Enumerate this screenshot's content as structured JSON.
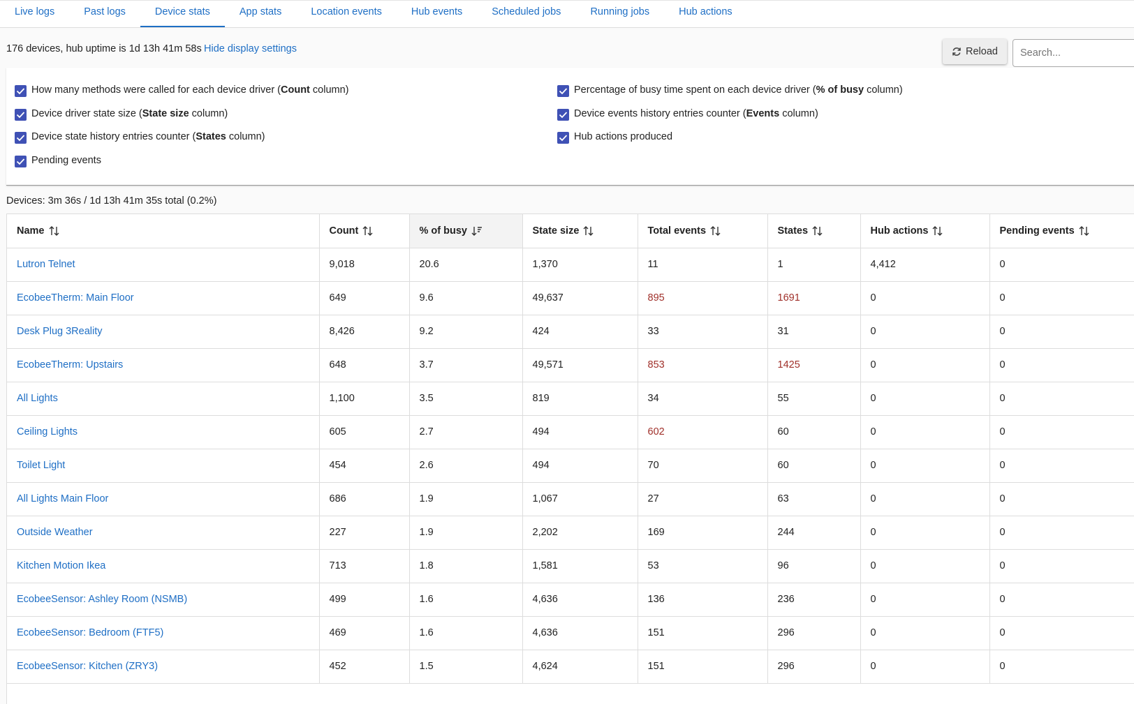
{
  "tabs": [
    "Live logs",
    "Past logs",
    "Device stats",
    "App stats",
    "Location events",
    "Hub events",
    "Scheduled jobs",
    "Running jobs",
    "Hub actions"
  ],
  "active_tab": 2,
  "summary": "176 devices, hub uptime is 1d 13h 41m 58s",
  "toggle_link": "Hide display settings",
  "reload": "Reload",
  "search_placeholder": "Search...",
  "settings": {
    "left": [
      {
        "parts": [
          "How many methods were called for each device driver (",
          "Count",
          " column)"
        ],
        "checked": true
      },
      {
        "parts": [
          "Device driver state size (",
          "State size",
          " column)"
        ],
        "checked": true
      },
      {
        "parts": [
          "Device state history entries counter (",
          "States",
          " column)"
        ],
        "checked": true
      },
      {
        "parts": [
          "Pending events"
        ],
        "checked": true
      }
    ],
    "right": [
      {
        "parts": [
          "Percentage of busy time spent on each device driver (",
          "% of busy",
          " column)"
        ],
        "checked": true
      },
      {
        "parts": [
          "Device events history entries counter (",
          "Events",
          " column)"
        ],
        "checked": true
      },
      {
        "parts": [
          "Hub actions produced"
        ],
        "checked": true
      }
    ]
  },
  "devices_summary": "Devices: 3m 36s / 1d 13h 41m 35s total (0.2%)",
  "table": {
    "columns": [
      "Name",
      "Count",
      "% of busy",
      "State size",
      "Total events",
      "States",
      "Hub actions",
      "Pending events"
    ],
    "sorted_column": 2,
    "alert_color": "#a0302a",
    "rows": [
      {
        "cells": [
          "Lutron Telnet",
          "9,018",
          "20.6",
          "1,370",
          "11",
          "1",
          "4,412",
          "0"
        ],
        "alert_columns": []
      },
      {
        "cells": [
          "EcobeeTherm: Main Floor",
          "649",
          "9.6",
          "49,637",
          "895",
          "1691",
          "0",
          "0"
        ],
        "alert_columns": [
          4,
          5
        ]
      },
      {
        "cells": [
          "Desk Plug 3Reality",
          "8,426",
          "9.2",
          "424",
          "33",
          "31",
          "0",
          "0"
        ],
        "alert_columns": []
      },
      {
        "cells": [
          "EcobeeTherm: Upstairs",
          "648",
          "3.7",
          "49,571",
          "853",
          "1425",
          "0",
          "0"
        ],
        "alert_columns": [
          4,
          5
        ]
      },
      {
        "cells": [
          "All Lights",
          "1,100",
          "3.5",
          "819",
          "34",
          "55",
          "0",
          "0"
        ],
        "alert_columns": []
      },
      {
        "cells": [
          "Ceiling Lights",
          "605",
          "2.7",
          "494",
          "602",
          "60",
          "0",
          "0"
        ],
        "alert_columns": [
          4
        ]
      },
      {
        "cells": [
          "Toilet Light",
          "454",
          "2.6",
          "494",
          "70",
          "60",
          "0",
          "0"
        ],
        "alert_columns": []
      },
      {
        "cells": [
          "All Lights Main Floor",
          "686",
          "1.9",
          "1,067",
          "27",
          "63",
          "0",
          "0"
        ],
        "alert_columns": []
      },
      {
        "cells": [
          "Outside Weather",
          "227",
          "1.9",
          "2,202",
          "169",
          "244",
          "0",
          "0"
        ],
        "alert_columns": []
      },
      {
        "cells": [
          "Kitchen Motion Ikea",
          "713",
          "1.8",
          "1,581",
          "53",
          "96",
          "0",
          "0"
        ],
        "alert_columns": []
      },
      {
        "cells": [
          "EcobeeSensor: Ashley Room (NSMB)",
          "499",
          "1.6",
          "4,636",
          "136",
          "236",
          "0",
          "0"
        ],
        "alert_columns": []
      },
      {
        "cells": [
          "EcobeeSensor: Bedroom (FTF5)",
          "469",
          "1.6",
          "4,636",
          "151",
          "296",
          "0",
          "0"
        ],
        "alert_columns": []
      },
      {
        "cells": [
          "EcobeeSensor: Kitchen (ZRY3)",
          "452",
          "1.5",
          "4,624",
          "151",
          "296",
          "0",
          "0"
        ],
        "alert_columns": []
      }
    ]
  }
}
